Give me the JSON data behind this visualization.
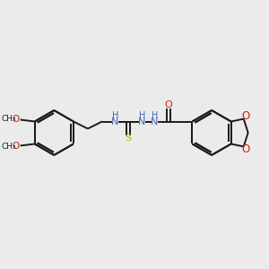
{
  "bg_color": "#ebebeb",
  "bond_color": "#1a1a1a",
  "N_color": "#4169b0",
  "O_color": "#cc2200",
  "S_color": "#b8b800",
  "line_width": 1.4,
  "fig_size": [
    3.0,
    3.0
  ],
  "dpi": 100,
  "xlim": [
    0,
    300
  ],
  "ylim": [
    0,
    300
  ]
}
